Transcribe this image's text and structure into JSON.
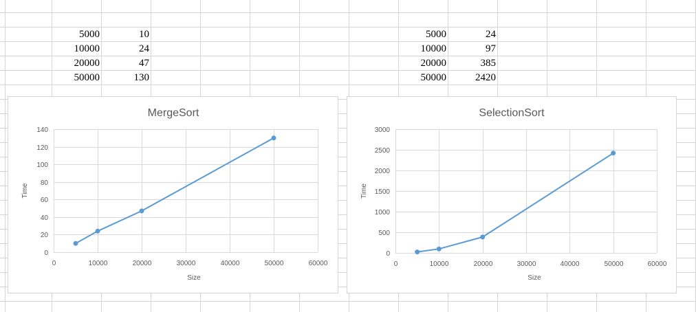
{
  "sheet": {
    "tables": [
      {
        "rows": [
          {
            "size": "5000",
            "time": "10"
          },
          {
            "size": "10000",
            "time": "24"
          },
          {
            "size": "20000",
            "time": "47"
          },
          {
            "size": "50000",
            "time": "130"
          }
        ]
      },
      {
        "rows": [
          {
            "size": "5000",
            "time": "24"
          },
          {
            "size": "10000",
            "time": "97"
          },
          {
            "size": "20000",
            "time": "385"
          },
          {
            "size": "50000",
            "time": "2420"
          }
        ]
      }
    ]
  },
  "colors": {
    "series": "#5b9bd5",
    "gridline": "#d9d9d9",
    "cell_border": "#d4d4d4",
    "text": "#595959"
  },
  "chart_data": [
    {
      "type": "scatter",
      "title": "MergeSort",
      "xlabel": "Size",
      "ylabel": "Time",
      "xlim": [
        0,
        60000
      ],
      "ylim": [
        0,
        140
      ],
      "xticks": [
        0,
        10000,
        20000,
        30000,
        40000,
        50000,
        60000
      ],
      "yticks": [
        0,
        20,
        40,
        60,
        80,
        100,
        120,
        140
      ],
      "grid": true,
      "series": [
        {
          "x": [
            5000,
            10000,
            20000,
            50000
          ],
          "values": [
            10,
            24,
            47,
            130
          ],
          "markers": true,
          "lines": "straight"
        }
      ]
    },
    {
      "type": "scatter",
      "title": "SelectionSort",
      "xlabel": "Size",
      "ylabel": "Time",
      "xlim": [
        0,
        60000
      ],
      "ylim": [
        0,
        3000
      ],
      "xticks": [
        0,
        10000,
        20000,
        30000,
        40000,
        50000,
        60000
      ],
      "yticks": [
        0,
        500,
        1000,
        1500,
        2000,
        2500,
        3000
      ],
      "grid": true,
      "series": [
        {
          "x": [
            5000,
            10000,
            20000,
            50000
          ],
          "values": [
            24,
            97,
            385,
            2420
          ],
          "markers": true,
          "lines": "straight"
        }
      ]
    }
  ]
}
